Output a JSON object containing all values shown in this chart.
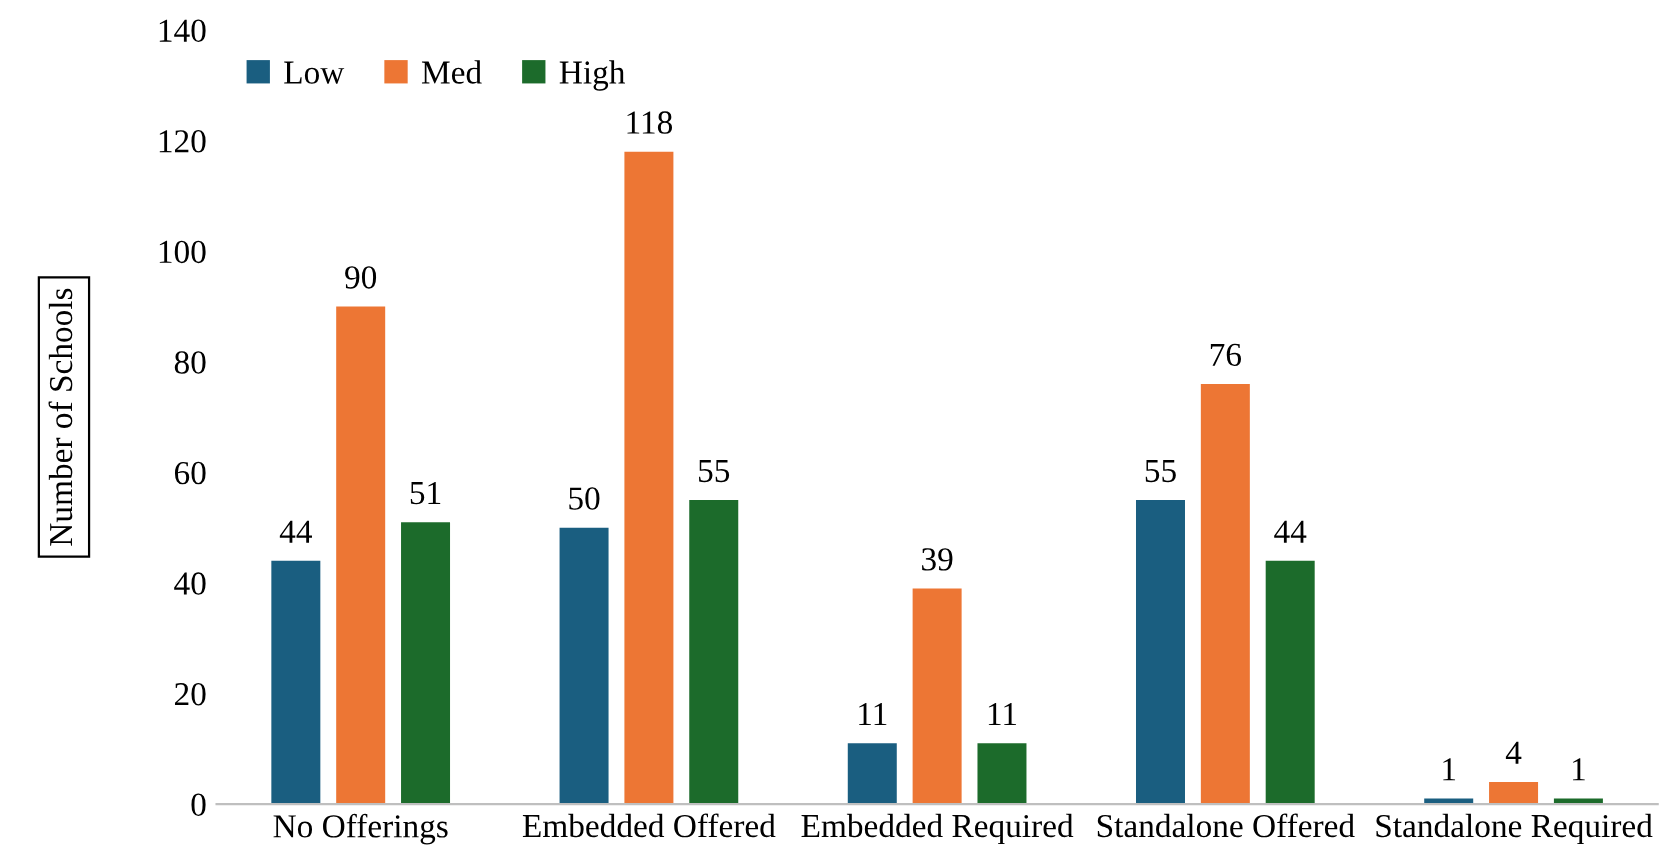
{
  "chart_data": {
    "type": "bar",
    "ylabel": "Number of Schools",
    "categories": [
      "No Offerings",
      "Embedded Offered",
      "Embedded Required",
      "Standalone Offered",
      "Standalone Required"
    ],
    "series": [
      {
        "name": "Low",
        "color": "#1a5e80",
        "values": [
          44,
          50,
          11,
          55,
          1
        ]
      },
      {
        "name": "Med",
        "color": "#ed7634",
        "values": [
          90,
          118,
          39,
          76,
          4
        ]
      },
      {
        "name": "High",
        "color": "#1c6b2b",
        "values": [
          51,
          55,
          11,
          44,
          1
        ]
      }
    ],
    "ylim": [
      0,
      140
    ],
    "yticks": [
      0,
      20,
      40,
      60,
      80,
      100,
      120,
      140
    ],
    "data_labels": true,
    "legend": "top left",
    "grid": false
  }
}
